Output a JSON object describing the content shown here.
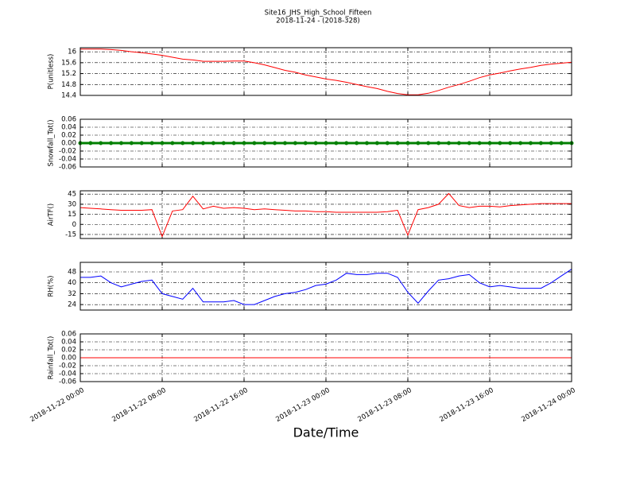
{
  "title": "Site16_JHS_High_School_Fifteen",
  "subtitle": "2018-11-24 - (2018-328)",
  "chart_data": [
    {
      "type": "line",
      "ylabel": "P(unitless)",
      "ylim": [
        14.4,
        16.15
      ],
      "yticks": [
        14.4,
        14.8,
        15.2,
        15.6,
        16.0
      ],
      "grid": true,
      "color": "#ff0000",
      "values": [
        16.1,
        16.1,
        16.1,
        16.08,
        16.05,
        16.0,
        15.97,
        15.92,
        15.87,
        15.8,
        15.73,
        15.7,
        15.65,
        15.65,
        15.65,
        15.66,
        15.66,
        15.6,
        15.52,
        15.42,
        15.32,
        15.25,
        15.15,
        15.08,
        15.0,
        14.95,
        14.88,
        14.8,
        14.72,
        14.65,
        14.55,
        14.47,
        14.42,
        14.42,
        14.48,
        14.58,
        14.7,
        14.8,
        14.92,
        15.05,
        15.15,
        15.22,
        15.3,
        15.37,
        15.43,
        15.5,
        15.55,
        15.58,
        15.62
      ]
    },
    {
      "type": "line",
      "ylabel": "Snowfall_Tot()",
      "ylim": [
        -0.06,
        0.06
      ],
      "yticks": [
        -0.06,
        -0.04,
        -0.02,
        {
          "value": 0,
          "label": "0.00"
        },
        0.02,
        0.04,
        0.06
      ],
      "grid": true,
      "color": "#008000",
      "markers": true,
      "values": [
        0,
        0,
        0,
        0,
        0,
        0,
        0,
        0,
        0,
        0,
        0,
        0,
        0,
        0,
        0,
        0,
        0,
        0,
        0,
        0,
        0,
        0,
        0,
        0,
        0,
        0,
        0,
        0,
        0,
        0,
        0,
        0,
        0,
        0,
        0,
        0,
        0,
        0,
        0,
        0,
        0,
        0,
        0,
        0,
        0,
        0,
        0,
        0,
        0
      ]
    },
    {
      "type": "line",
      "ylabel": "AirTF()",
      "ylim": [
        -21,
        50
      ],
      "yticks": [
        -15,
        0,
        15,
        30,
        45
      ],
      "grid": true,
      "color": "#ff0000",
      "values": [
        25,
        24,
        23,
        22,
        21,
        21,
        21,
        22,
        -18,
        20,
        22,
        42,
        23,
        27,
        24,
        25,
        24,
        22,
        23,
        22,
        21,
        20,
        20,
        19,
        19,
        18,
        18,
        18,
        18,
        18,
        19,
        21,
        -16,
        22,
        25,
        30,
        46,
        28,
        25,
        27,
        27,
        26,
        28,
        29,
        30,
        31,
        31,
        31,
        31
      ]
    },
    {
      "type": "line",
      "ylabel": "RH(%)",
      "ylim": [
        20,
        55
      ],
      "yticks": [
        24,
        32,
        40,
        48
      ],
      "grid": true,
      "color": "#0000ff",
      "values": [
        44,
        44,
        45,
        40,
        37,
        39,
        41,
        42,
        32,
        30,
        28,
        36,
        26,
        26,
        26,
        27,
        24,
        24,
        27,
        30,
        32,
        33,
        35,
        38,
        39,
        42,
        47,
        46,
        46,
        47,
        47,
        44,
        33,
        25,
        34,
        42,
        43,
        45,
        46,
        40,
        37,
        38,
        37,
        36,
        36,
        36,
        40,
        45,
        50
      ]
    },
    {
      "type": "line",
      "ylabel": "Rainfall_Tot()",
      "ylim": [
        -0.06,
        0.06
      ],
      "yticks": [
        -0.06,
        -0.04,
        -0.02,
        {
          "value": 0,
          "label": "0.00"
        },
        0.02,
        0.04,
        0.06
      ],
      "grid": true,
      "color": "#ff0000",
      "values": [
        0,
        0,
        0,
        0,
        0,
        0,
        0,
        0,
        0,
        0,
        0,
        0,
        0,
        0,
        0,
        0,
        0,
        0,
        0,
        0,
        0,
        0,
        0,
        0,
        0,
        0,
        0,
        0,
        0,
        0,
        0,
        0,
        0,
        0,
        0,
        0,
        0,
        0,
        0,
        0,
        0,
        0,
        0,
        0,
        0,
        0,
        0,
        0,
        0
      ],
      "xlabel": "Date/Time",
      "x": [
        "2018-11-22 00:00",
        "2018-11-22 01:00",
        "2018-11-22 02:00",
        "2018-11-22 03:00",
        "2018-11-22 04:00",
        "2018-11-22 05:00",
        "2018-11-22 06:00",
        "2018-11-22 07:00",
        "2018-11-22 08:00",
        "2018-11-22 09:00",
        "2018-11-22 10:00",
        "2018-11-22 11:00",
        "2018-11-22 12:00",
        "2018-11-22 13:00",
        "2018-11-22 14:00",
        "2018-11-22 15:00",
        "2018-11-22 16:00",
        "2018-11-22 17:00",
        "2018-11-22 18:00",
        "2018-11-22 19:00",
        "2018-11-22 20:00",
        "2018-11-22 21:00",
        "2018-11-22 22:00",
        "2018-11-22 23:00",
        "2018-11-23 00:00",
        "2018-11-23 01:00",
        "2018-11-23 02:00",
        "2018-11-23 03:00",
        "2018-11-23 04:00",
        "2018-11-23 05:00",
        "2018-11-23 06:00",
        "2018-11-23 07:00",
        "2018-11-23 08:00",
        "2018-11-23 09:00",
        "2018-11-23 10:00",
        "2018-11-23 11:00",
        "2018-11-23 12:00",
        "2018-11-23 13:00",
        "2018-11-23 14:00",
        "2018-11-23 15:00",
        "2018-11-23 16:00",
        "2018-11-23 17:00",
        "2018-11-23 18:00",
        "2018-11-23 19:00",
        "2018-11-23 20:00",
        "2018-11-23 21:00",
        "2018-11-23 22:00",
        "2018-11-23 23:00",
        "2018-11-24 00:00"
      ],
      "xticks": [
        "2018-11-22 00:00",
        "2018-11-22 08:00",
        "2018-11-22 16:00",
        "2018-11-23 00:00",
        "2018-11-23 08:00",
        "2018-11-23 16:00",
        "2018-11-24 00:00"
      ]
    }
  ]
}
